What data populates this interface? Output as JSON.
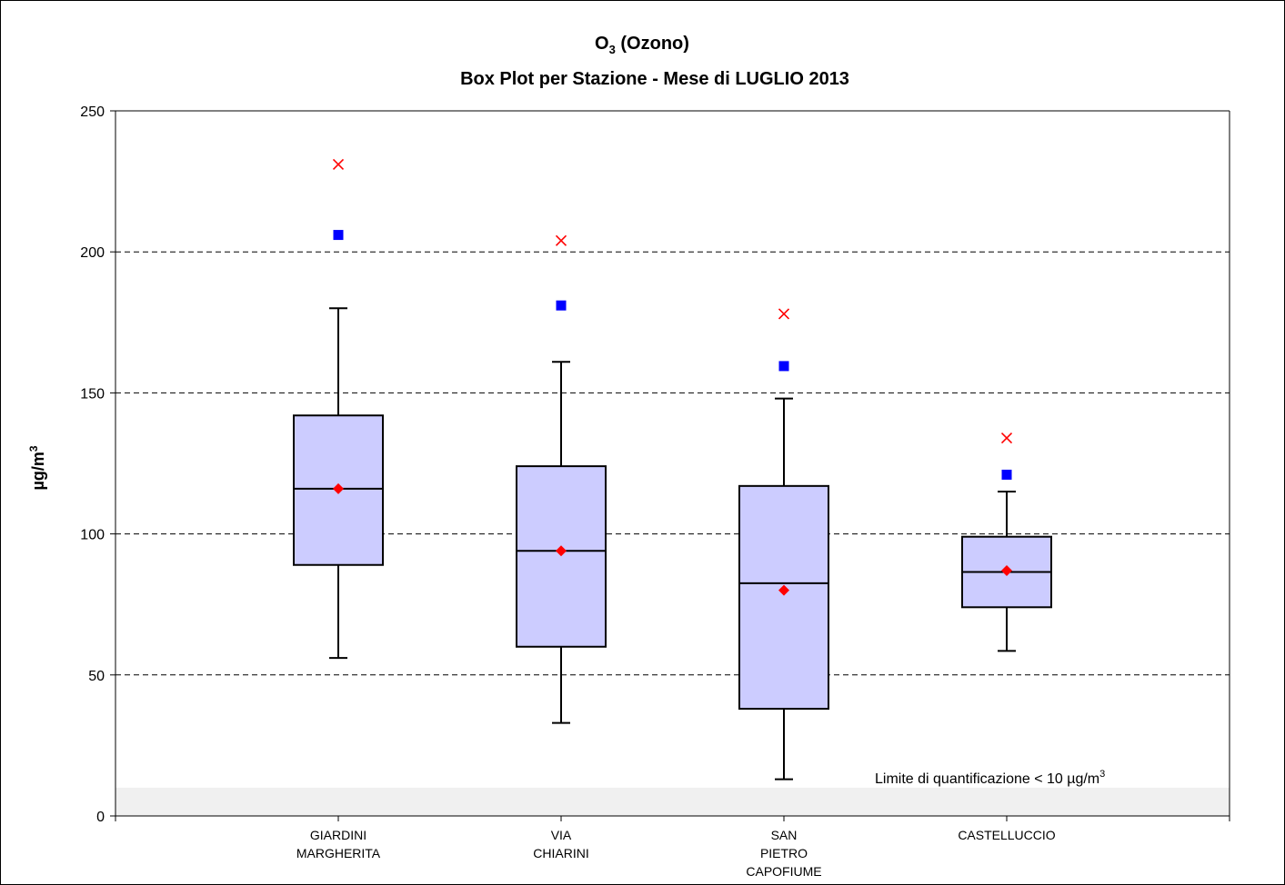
{
  "chart_data": {
    "type": "box",
    "title_main": "O",
    "title_sub_script": "3",
    "title_rest": " (Ozono)",
    "subtitle": "Box Plot per Stazione - Mese di LUGLIO 2013",
    "ylabel_main": "µg/m",
    "ylabel_sup": "3",
    "ylim": [
      0,
      250
    ],
    "yticks": [
      0,
      50,
      100,
      150,
      200,
      250
    ],
    "grid": true,
    "quantification_limit": 10,
    "note_main": "Limite di quantificazione < 10 µg/m",
    "note_sup": "3",
    "colors": {
      "box_fill": "#ccccff",
      "mean_marker": "#ff0000",
      "square_marker": "#0000ff",
      "cross_marker": "#ff0000",
      "limit_band": "#f0f0f0"
    },
    "categories": [
      [
        "GIARDINI",
        "MARGHERITA"
      ],
      [
        "VIA",
        "CHIARINI"
      ],
      [
        "SAN",
        "PIETRO",
        "CAPOFIUME"
      ],
      [
        "CASTELLUCCIO"
      ]
    ],
    "boxes": [
      {
        "whisker_low": 56,
        "q1": 89,
        "median": 116,
        "q3": 142,
        "whisker_high": 180,
        "mean": 116,
        "square": 206,
        "cross": 231
      },
      {
        "whisker_low": 33,
        "q1": 60,
        "median": 94,
        "q3": 124,
        "whisker_high": 161,
        "mean": 94,
        "square": 181,
        "cross": 204
      },
      {
        "whisker_low": 13,
        "q1": 38,
        "median": 82.5,
        "q3": 117,
        "whisker_high": 148,
        "mean": 80,
        "square": 159.5,
        "cross": 178
      },
      {
        "whisker_low": 58.5,
        "q1": 74,
        "median": 86.5,
        "q3": 99,
        "whisker_high": 115,
        "mean": 87,
        "square": 121,
        "cross": 134
      }
    ]
  }
}
